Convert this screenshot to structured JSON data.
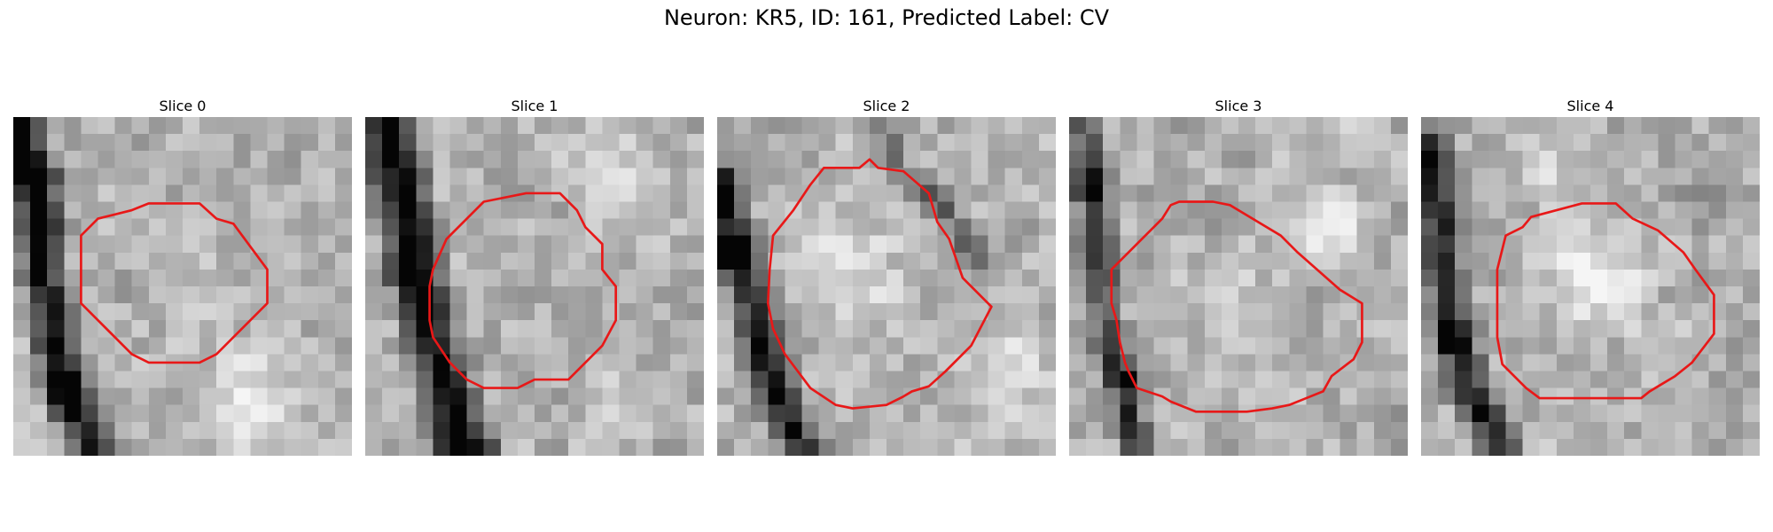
{
  "figure": {
    "title": "Neuron: KR5, ID: 161, Predicted Label: CV"
  },
  "contour_color": "#e81818",
  "slices": [
    {
      "title": "Slice 0",
      "contour": [
        [
          8.5,
          5.1
        ],
        [
          11.0,
          5.1
        ],
        [
          12.0,
          6.0
        ],
        [
          13.0,
          6.3
        ],
        [
          15.0,
          9.0
        ],
        [
          15.0,
          11.0
        ],
        [
          14.0,
          12.0
        ],
        [
          12.0,
          14.0
        ],
        [
          11.0,
          14.5
        ],
        [
          8.0,
          14.5
        ],
        [
          7.0,
          14.0
        ],
        [
          6.0,
          13.0
        ],
        [
          5.5,
          12.5
        ],
        [
          5.0,
          12.0
        ],
        [
          4.0,
          11.0
        ],
        [
          4.0,
          10.0
        ],
        [
          4.0,
          8.0
        ],
        [
          4.0,
          7.0
        ],
        [
          5.0,
          6.0
        ],
        [
          7.0,
          5.5
        ],
        [
          8.0,
          5.1
        ]
      ],
      "dark_features": [
        {
          "kind": "band",
          "points": [
            [
              0.3,
              0
            ],
            [
              1.5,
              5
            ],
            [
              1.8,
              9
            ],
            [
              2.3,
              13
            ],
            [
              3.3,
              16.5
            ],
            [
              4.6,
              19.5
            ]
          ],
          "width": 2.0,
          "strength": 0.72
        },
        {
          "kind": "blob",
          "cx": 1.4,
          "cy": 3.5,
          "r": 1.6,
          "strength": 0.55
        },
        {
          "kind": "blob",
          "cx": 2.8,
          "cy": 16.5,
          "r": 1.5,
          "strength": 0.35
        }
      ],
      "bright_features": [
        {
          "cx": 14,
          "cy": 17,
          "r": 4.2,
          "strength": 0.22
        },
        {
          "cx": 9.5,
          "cy": 10,
          "r": 3.0,
          "strength": 0.08
        }
      ],
      "seed": 11
    },
    {
      "title": "Slice 1",
      "contour": [
        [
          7.0,
          5.0
        ],
        [
          9.5,
          4.5
        ],
        [
          11.5,
          4.5
        ],
        [
          12.5,
          5.5
        ],
        [
          13.0,
          6.5
        ],
        [
          14.0,
          7.5
        ],
        [
          14.0,
          9.0
        ],
        [
          14.8,
          10.0
        ],
        [
          14.8,
          12.0
        ],
        [
          14.0,
          13.5
        ],
        [
          12.0,
          15.5
        ],
        [
          10.0,
          15.5
        ],
        [
          9.0,
          16.0
        ],
        [
          7.0,
          16.0
        ],
        [
          6.0,
          15.5
        ],
        [
          5.0,
          14.5
        ],
        [
          4.0,
          13.0
        ],
        [
          3.8,
          12.0
        ],
        [
          3.8,
          10.0
        ],
        [
          4.0,
          9.0
        ],
        [
          4.8,
          7.2
        ],
        [
          6.5,
          5.5
        ]
      ],
      "dark_features": [
        {
          "kind": "band",
          "points": [
            [
              1.3,
              0
            ],
            [
              2.0,
              3.5
            ],
            [
              2.8,
              7
            ],
            [
              3.5,
              11
            ],
            [
              4.5,
              15
            ],
            [
              5.6,
              19.5
            ]
          ],
          "width": 2.4,
          "strength": 0.78
        },
        {
          "kind": "blob",
          "cx": 2.4,
          "cy": 9.2,
          "r": 1.4,
          "strength": 0.35
        },
        {
          "kind": "blob",
          "cx": 7.0,
          "cy": 19.3,
          "r": 1.3,
          "strength": 0.4
        }
      ],
      "bright_features": [
        {
          "cx": 14,
          "cy": 2.5,
          "r": 3.5,
          "strength": 0.2
        },
        {
          "cx": 15,
          "cy": 17,
          "r": 3.0,
          "strength": 0.15
        }
      ],
      "seed": 23
    },
    {
      "title": "Slice 2",
      "contour": [
        [
          6.3,
          3.0
        ],
        [
          8.4,
          3.0
        ],
        [
          9.0,
          2.5
        ],
        [
          9.5,
          3.0
        ],
        [
          11.0,
          3.2
        ],
        [
          12.5,
          4.5
        ],
        [
          13.0,
          6.2
        ],
        [
          13.7,
          7.2
        ],
        [
          14.5,
          9.5
        ],
        [
          16.2,
          11.2
        ],
        [
          15.0,
          13.5
        ],
        [
          13.5,
          15.0
        ],
        [
          12.5,
          15.9
        ],
        [
          11.5,
          16.2
        ],
        [
          11.0,
          16.5
        ],
        [
          10.0,
          17.0
        ],
        [
          8.0,
          17.2
        ],
        [
          7.0,
          17.0
        ],
        [
          5.5,
          16.0
        ],
        [
          4.0,
          14.0
        ],
        [
          3.3,
          12.5
        ],
        [
          3.0,
          11.0
        ],
        [
          3.1,
          9.0
        ],
        [
          3.3,
          7.0
        ],
        [
          4.5,
          5.5
        ],
        [
          5.5,
          4.0
        ]
      ],
      "dark_features": [
        {
          "kind": "band",
          "points": [
            [
              0.2,
              4
            ],
            [
              1.0,
              7
            ],
            [
              1.8,
              10
            ],
            [
              2.8,
              14
            ],
            [
              4.0,
              17.5
            ],
            [
              5.2,
              19.5
            ]
          ],
          "width": 1.8,
          "strength": 0.72
        },
        {
          "kind": "band",
          "points": [
            [
              9.5,
              0
            ],
            [
              10.6,
              3
            ],
            [
              13.4,
              5.5
            ],
            [
              16,
              8.8
            ]
          ],
          "width": 1.4,
          "strength": 0.32
        },
        {
          "kind": "blob",
          "cx": 0.6,
          "cy": 8.0,
          "r": 1.5,
          "strength": 0.55
        }
      ],
      "bright_features": [
        {
          "cx": 7.5,
          "cy": 8.5,
          "r": 4.5,
          "strength": 0.22
        },
        {
          "cx": 17,
          "cy": 15,
          "r": 3.5,
          "strength": 0.18
        }
      ],
      "seed": 37
    },
    {
      "title": "Slice 3",
      "contour": [
        [
          6.0,
          5.2
        ],
        [
          6.5,
          5.0
        ],
        [
          7.5,
          5.0
        ],
        [
          8.5,
          5.0
        ],
        [
          9.5,
          5.2
        ],
        [
          12.5,
          7.0
        ],
        [
          13.5,
          8.0
        ],
        [
          16.0,
          10.2
        ],
        [
          17.3,
          11.0
        ],
        [
          17.3,
          13.3
        ],
        [
          16.8,
          14.3
        ],
        [
          15.5,
          15.3
        ],
        [
          15.0,
          16.2
        ],
        [
          14.0,
          16.6
        ],
        [
          13.0,
          17.0
        ],
        [
          12.0,
          17.2
        ],
        [
          10.5,
          17.4
        ],
        [
          7.5,
          17.4
        ],
        [
          6.0,
          16.8
        ],
        [
          5.5,
          16.5
        ],
        [
          4.0,
          16.0
        ],
        [
          3.5,
          15.0
        ],
        [
          3.3,
          14.5
        ],
        [
          3.0,
          13.3
        ],
        [
          2.8,
          12.0
        ],
        [
          2.5,
          11.0
        ],
        [
          2.5,
          9.0
        ],
        [
          3.5,
          8.0
        ],
        [
          4.5,
          7.0
        ],
        [
          5.5,
          6.0
        ]
      ],
      "dark_features": [
        {
          "kind": "band",
          "points": [
            [
              1.0,
              0
            ],
            [
              1.4,
              5
            ],
            [
              1.8,
              9
            ],
            [
              2.3,
              13
            ],
            [
              3.2,
              16.5
            ],
            [
              4.0,
              19.5
            ]
          ],
          "width": 1.6,
          "strength": 0.55
        },
        {
          "kind": "blob",
          "cx": 3.5,
          "cy": 15.5,
          "r": 1.2,
          "strength": 0.7
        },
        {
          "kind": "blob",
          "cx": 1.2,
          "cy": 4.0,
          "r": 1.6,
          "strength": 0.35
        }
      ],
      "bright_features": [
        {
          "cx": 15,
          "cy": 7,
          "r": 4.0,
          "strength": 0.18
        },
        {
          "cx": 10,
          "cy": 11,
          "r": 4.0,
          "strength": 0.12
        }
      ],
      "seed": 41
    },
    {
      "title": "Slice 4",
      "contour": [
        [
          6.5,
          5.9
        ],
        [
          9.5,
          5.1
        ],
        [
          11.5,
          5.1
        ],
        [
          12.5,
          6.0
        ],
        [
          14.0,
          6.7
        ],
        [
          15.5,
          8.0
        ],
        [
          16.2,
          9.0
        ],
        [
          17.3,
          10.5
        ],
        [
          17.3,
          12.8
        ],
        [
          16.0,
          14.5
        ],
        [
          15.0,
          15.3
        ],
        [
          14.0,
          15.9
        ],
        [
          13.5,
          16.2
        ],
        [
          13.0,
          16.6
        ],
        [
          11.5,
          16.6
        ],
        [
          8.0,
          16.6
        ],
        [
          7.0,
          16.6
        ],
        [
          6.2,
          16.0
        ],
        [
          4.8,
          14.6
        ],
        [
          4.5,
          13.0
        ],
        [
          4.5,
          12.0
        ],
        [
          4.5,
          11.0
        ],
        [
          4.5,
          9.0
        ],
        [
          5.0,
          7.0
        ],
        [
          6.0,
          6.5
        ]
      ],
      "dark_features": [
        {
          "kind": "band",
          "points": [
            [
              0.5,
              2
            ],
            [
              1.0,
              6
            ],
            [
              1.5,
              10
            ],
            [
              2.3,
              14
            ],
            [
              3.5,
              17.5
            ],
            [
              4.8,
              19.5
            ]
          ],
          "width": 1.9,
          "strength": 0.65
        },
        {
          "kind": "blob",
          "cx": 1.5,
          "cy": 13.2,
          "r": 1.3,
          "strength": 0.55
        },
        {
          "kind": "blob",
          "cx": 16.5,
          "cy": 4.5,
          "r": 2.5,
          "strength": 0.18
        }
      ],
      "bright_features": [
        {
          "cx": 10.5,
          "cy": 9.5,
          "r": 4.5,
          "strength": 0.25
        },
        {
          "cx": 7,
          "cy": 2.5,
          "r": 3.0,
          "strength": 0.15
        }
      ],
      "seed": 53
    }
  ]
}
